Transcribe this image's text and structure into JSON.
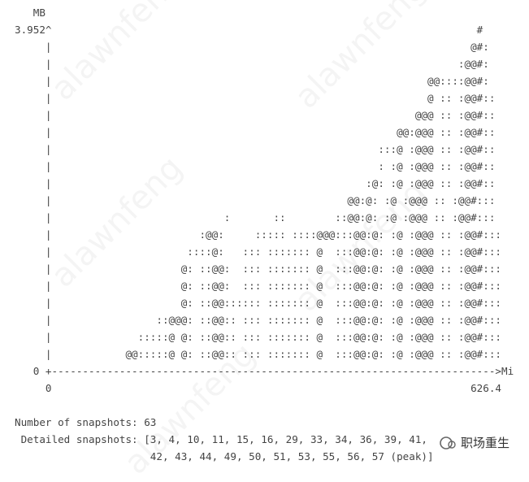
{
  "graph_lines": [
    "   MB",
    "3.952^                                                                     #",
    "     |                                                                    @#:",
    "     |                                                                  :@@#:",
    "     |                                                             @@::::@@#:",
    "     |                                                             @ :: :@@#::",
    "     |                                                           @@@ :: :@@#::",
    "     |                                                        @@:@@@ :: :@@#::",
    "     |                                                     :::@ :@@@ :: :@@#::",
    "     |                                                     : :@ :@@@ :: :@@#::",
    "     |                                                   :@: :@ :@@@ :: :@@#::",
    "     |                                                @@:@: :@ :@@@ :: :@@#:::",
    "     |                            :       ::        ::@@:@: :@ :@@@ :: :@@#:::",
    "     |                        :@@:     ::::: ::::@@@:::@@:@: :@ :@@@ :: :@@#:::",
    "     |                      ::::@:   ::: ::::::: @  :::@@:@: :@ :@@@ :: :@@#:::",
    "     |                     @: ::@@:  ::: ::::::: @  :::@@:@: :@ :@@@ :: :@@#:::",
    "     |                     @: ::@@:  ::: ::::::: @  :::@@:@: :@ :@@@ :: :@@#:::",
    "     |                     @: ::@@:::::: ::::::: @  :::@@:@: :@ :@@@ :: :@@#:::",
    "     |                 ::@@@: ::@@:: ::: ::::::: @  :::@@:@: :@ :@@@ :: :@@#:::",
    "     |              :::::@ @: ::@@:: ::: ::::::: @  :::@@:@: :@ :@@@ :: :@@#:::",
    "     |            @@:::::@ @: ::@@:: ::: ::::::: @  :::@@:@: :@ :@@@ :: :@@#:::",
    "   0 +------------------------------------------------------------------------>Mi",
    "     0                                                                    626.4"
  ],
  "summary_lines": [
    "Number of snapshots: 63",
    " Detailed snapshots: [3, 4, 10, 11, 15, 16, 29, 33, 34, 36, 39, 41,",
    "                      42, 43, 44, 49, 50, 51, 53, 55, 56, 57 (peak)]"
  ],
  "watermark": "alawnfeng",
  "logo_text": "职场重生"
}
